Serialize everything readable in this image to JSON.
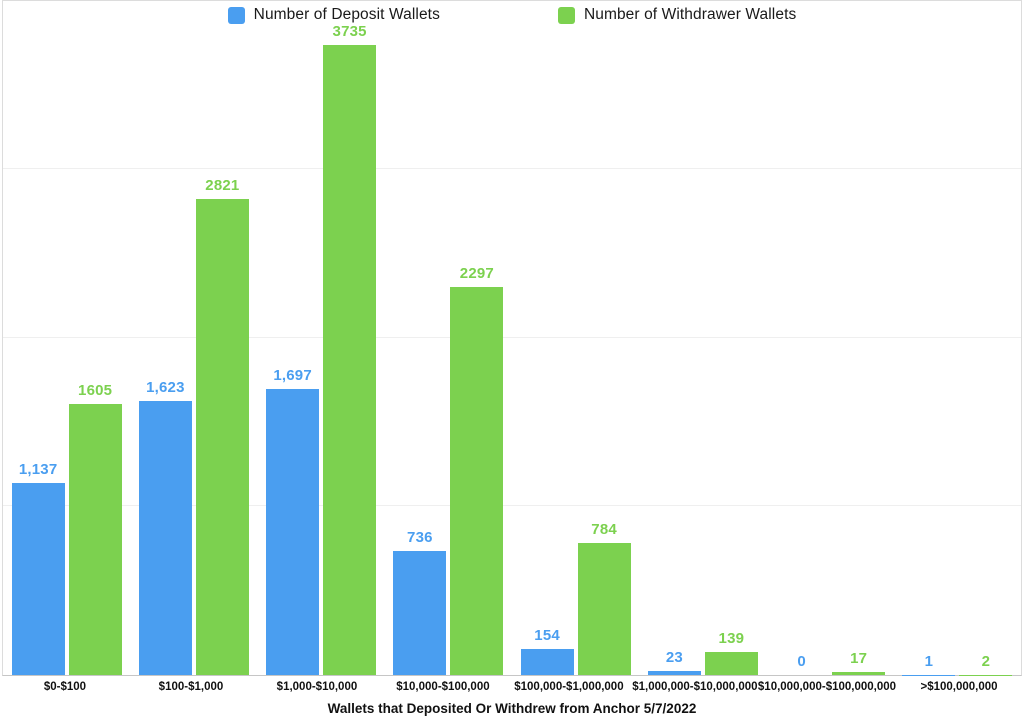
{
  "legend": {
    "items": [
      {
        "label": "Number of Deposit Wallets",
        "color": "#4A9EF0",
        "icon": "blue-square-swatch"
      },
      {
        "label": "Number of Withdrawer Wallets",
        "color": "#7CD14F",
        "icon": "green-square-swatch"
      }
    ]
  },
  "chart_data": {
    "type": "bar",
    "title": "",
    "xlabel": "Wallets that Deposited Or Withdrew from Anchor 5/7/2022",
    "ylabel": "",
    "categories": [
      "$0-$100",
      "$100-$1,000",
      "$1,000-$10,000",
      "$10,000-$100,000",
      "$100,000-$1,000,000",
      "$1,000,000-$10,000,000",
      "$10,000,000-$100,000,000",
      ">$100,000,000"
    ],
    "series": [
      {
        "name": "Number of Deposit Wallets",
        "color": "#4A9EF0",
        "values": [
          1137,
          1623,
          1697,
          736,
          154,
          23,
          0,
          1
        ],
        "value_labels": [
          "1,137",
          "1,623",
          "1,697",
          "736",
          "154",
          "23",
          "0",
          "1"
        ]
      },
      {
        "name": "Number of Withdrawer Wallets",
        "color": "#7CD14F",
        "values": [
          1605,
          2821,
          3735,
          2297,
          784,
          139,
          17,
          2
        ],
        "value_labels": [
          "1605",
          "2821",
          "3735",
          "2297",
          "784",
          "139",
          "17",
          "2"
        ]
      }
    ],
    "ylim": [
      0,
      4000
    ],
    "gridline_values": [
      1000,
      2000,
      3000
    ],
    "grid_on": true,
    "y_tick_labels_visible": false,
    "legend_position": "top-center",
    "bar_value_labels_visible": true
  },
  "colors": {
    "deposit_blue": "#4A9EF0",
    "withdraw_green": "#7CD14F",
    "gridline": "#efefef",
    "plot_border": "#dcdcdc",
    "axis_baseline": "#c6c6c6",
    "text": "#111111"
  }
}
